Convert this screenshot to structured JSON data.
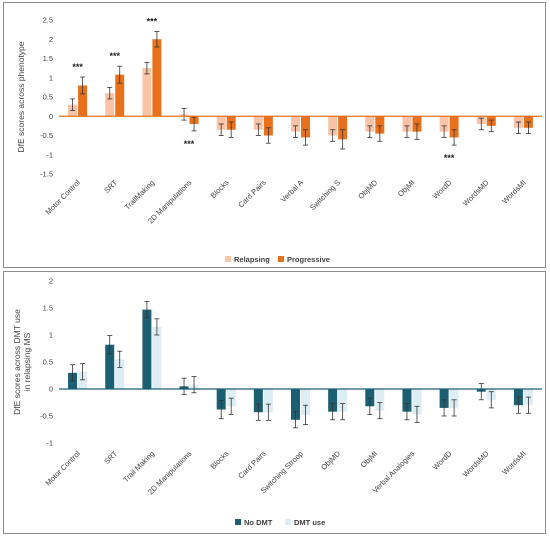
{
  "chart_data": [
    {
      "type": "bar",
      "ylabel": "DfE scores across phenotype",
      "ylim": [
        -1.5,
        2.5
      ],
      "yticks": [
        -1.5,
        -1,
        -0.5,
        0,
        0.5,
        1,
        1.5,
        2,
        2.5
      ],
      "categories": [
        "Motor Control",
        "SRT",
        "TrailMaking",
        "2D Manipulations",
        "Blocks",
        "Card Pairs",
        "Verbal A",
        "Switching S",
        "ObjMD",
        "ObjMI",
        "WordD",
        "WordsMD",
        "WordsMI"
      ],
      "series": [
        {
          "name": "Relapsing",
          "color": "#f8c3a6",
          "values": [
            0.3,
            0.6,
            1.25,
            0.05,
            -0.35,
            -0.35,
            -0.4,
            -0.5,
            -0.4,
            -0.4,
            -0.4,
            -0.2,
            -0.3
          ],
          "errors": [
            0.15,
            0.15,
            0.15,
            0.15,
            0.15,
            0.15,
            0.15,
            0.15,
            0.15,
            0.15,
            0.15,
            0.15,
            0.15
          ]
        },
        {
          "name": "Progressive",
          "color": "#e9711c",
          "values": [
            0.8,
            1.08,
            2.0,
            -0.2,
            -0.35,
            -0.5,
            -0.55,
            -0.6,
            -0.45,
            -0.4,
            -0.55,
            -0.25,
            -0.3
          ],
          "errors": [
            0.22,
            0.22,
            0.2,
            0.18,
            0.2,
            0.2,
            0.2,
            0.25,
            0.2,
            0.2,
            0.2,
            0.15,
            0.15
          ]
        }
      ],
      "annotations": [
        {
          "category": "Motor Control",
          "text": "***",
          "position": "above"
        },
        {
          "category": "SRT",
          "text": "***",
          "position": "above"
        },
        {
          "category": "TrailMaking",
          "text": "***",
          "position": "above"
        },
        {
          "category": "2D Manipulations",
          "text": "***",
          "position": "below"
        },
        {
          "category": "WordD",
          "text": "***",
          "position": "below"
        }
      ],
      "legend": "bottom-center",
      "grid": false
    },
    {
      "type": "bar",
      "ylabel": "DfE scores across DMT use in relapsing MS",
      "ylim": [
        -1,
        2
      ],
      "yticks": [
        -1,
        -0.5,
        0,
        0.5,
        1,
        1.5,
        2
      ],
      "categories": [
        "Motor Control",
        "SRT",
        "Trail Making",
        "2D Manipulations",
        "Blocks",
        "Card Pairs",
        "Switching Stroop",
        "ObjMD",
        "ObjMI",
        "Verbal Analogies",
        "WordD",
        "WordsMD",
        "WordsMI"
      ],
      "series": [
        {
          "name": "No DMT",
          "color": "#1c5f73",
          "values": [
            0.3,
            0.82,
            1.47,
            0.05,
            -0.38,
            -0.43,
            -0.57,
            -0.42,
            -0.32,
            -0.42,
            -0.35,
            -0.05,
            -0.3
          ],
          "errors": [
            0.15,
            0.17,
            0.15,
            0.15,
            0.17,
            0.15,
            0.15,
            0.15,
            0.15,
            0.15,
            0.15,
            0.15,
            0.15
          ]
        },
        {
          "name": "DMT use",
          "color": "#dcedf4",
          "values": [
            0.32,
            0.55,
            1.15,
            0.08,
            -0.32,
            -0.43,
            -0.48,
            -0.42,
            -0.4,
            -0.47,
            -0.35,
            -0.2,
            -0.3
          ],
          "errors": [
            0.15,
            0.15,
            0.15,
            0.15,
            0.15,
            0.15,
            0.18,
            0.15,
            0.15,
            0.15,
            0.15,
            0.15,
            0.15
          ]
        }
      ],
      "legend": "bottom-center",
      "grid": false
    }
  ]
}
